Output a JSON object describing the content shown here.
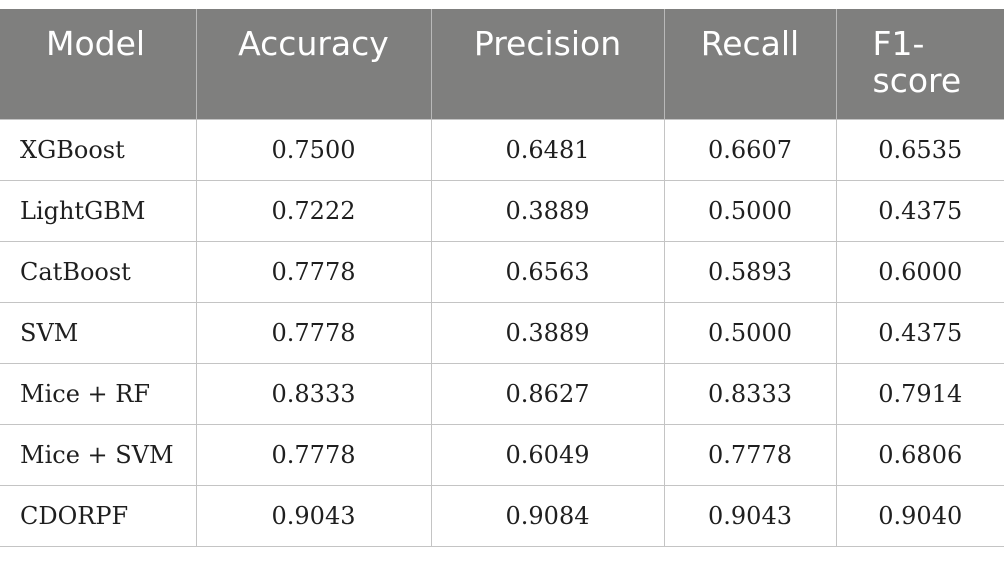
{
  "table": {
    "headers": [
      "Model",
      "Accuracy",
      "Precision",
      "Recall",
      "F1-\nscore"
    ],
    "header_f1_line1": "F1-",
    "header_f1_line2": "score",
    "rows": [
      {
        "model": "XGBoost",
        "accuracy": "0.7500",
        "precision": "0.6481",
        "recall": "0.6607",
        "f1": "0.6535"
      },
      {
        "model": "LightGBM",
        "accuracy": "0.7222",
        "precision": "0.3889",
        "recall": "0.5000",
        "f1": "0.4375"
      },
      {
        "model": "CatBoost",
        "accuracy": "0.7778",
        "precision": "0.6563",
        "recall": "0.5893",
        "f1": "0.6000"
      },
      {
        "model": "SVM",
        "accuracy": "0.7778",
        "precision": "0.3889",
        "recall": "0.5000",
        "f1": "0.4375"
      },
      {
        "model": "Mice + RF",
        "accuracy": "0.8333",
        "precision": "0.8627",
        "recall": "0.8333",
        "f1": "0.7914"
      },
      {
        "model": "Mice + SVM",
        "accuracy": "0.7778",
        "precision": "0.6049",
        "recall": "0.7778",
        "f1": "0.6806"
      },
      {
        "model": "CDORPF",
        "accuracy": "0.9043",
        "precision": "0.9084",
        "recall": "0.9043",
        "f1": "0.9040"
      }
    ]
  },
  "colors": {
    "header_bg": "#7f7f7e",
    "header_text": "#ffffff",
    "grid_line": "#c4c4c4",
    "body_text": "#1f1f1f"
  }
}
